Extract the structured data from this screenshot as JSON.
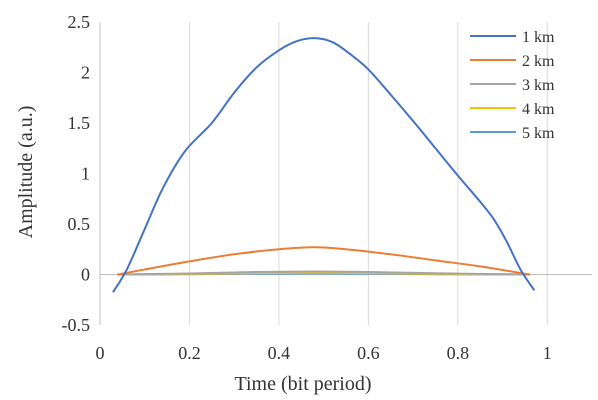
{
  "chart_data": {
    "type": "line",
    "xlabel": "Time (bit period)",
    "ylabel": "Amplitude (a.u.)",
    "xlim": [
      0,
      1.1
    ],
    "ylim": [
      -0.5,
      2.5
    ],
    "xticks": [
      0,
      0.2,
      0.4,
      0.6,
      0.8,
      1
    ],
    "xtick_labels": [
      "0",
      "0.2",
      "0.4",
      "0.6",
      "0.8",
      "1"
    ],
    "yticks": [
      -0.5,
      0,
      0.5,
      1,
      1.5,
      2,
      2.5
    ],
    "ytick_labels": [
      "-0.5",
      "0",
      "0.5",
      "1",
      "1.5",
      "2",
      "2.5"
    ],
    "grid": "vertical",
    "legend": "top-right",
    "series": [
      {
        "name": "1 km",
        "color": "#4472c4",
        "x": [
          0.03,
          0.06,
          0.1,
          0.14,
          0.19,
          0.25,
          0.3,
          0.35,
          0.4,
          0.44,
          0.48,
          0.52,
          0.56,
          0.6,
          0.65,
          0.7,
          0.75,
          0.8,
          0.85,
          0.88,
          0.91,
          0.94,
          0.97
        ],
        "y": [
          -0.17,
          0.05,
          0.45,
          0.85,
          1.22,
          1.5,
          1.8,
          2.05,
          2.22,
          2.31,
          2.34,
          2.3,
          2.18,
          2.03,
          1.78,
          1.52,
          1.25,
          0.98,
          0.72,
          0.55,
          0.32,
          0.05,
          -0.15
        ]
      },
      {
        "name": "2 km",
        "color": "#ed7d31",
        "x": [
          0.04,
          0.1,
          0.2,
          0.3,
          0.4,
          0.48,
          0.55,
          0.65,
          0.75,
          0.85,
          0.96
        ],
        "y": [
          0.0,
          0.05,
          0.13,
          0.2,
          0.25,
          0.27,
          0.25,
          0.2,
          0.14,
          0.08,
          0.0
        ]
      },
      {
        "name": "3 km",
        "color": "#a5a5a5",
        "x": [
          0.04,
          0.2,
          0.35,
          0.48,
          0.6,
          0.75,
          0.96
        ],
        "y": [
          0.0,
          0.01,
          0.025,
          0.03,
          0.025,
          0.012,
          0.0
        ]
      },
      {
        "name": "4 km",
        "color": "#ffc000",
        "x": [
          0.04,
          0.2,
          0.35,
          0.48,
          0.6,
          0.75,
          0.96
        ],
        "y": [
          0.0,
          0.006,
          0.014,
          0.018,
          0.014,
          0.007,
          0.0
        ]
      },
      {
        "name": "5 km",
        "color": "#5b9bd5",
        "x": [
          0.04,
          0.2,
          0.35,
          0.48,
          0.6,
          0.75,
          0.96
        ],
        "y": [
          0.0,
          0.003,
          0.007,
          0.009,
          0.007,
          0.003,
          0.0
        ]
      }
    ]
  }
}
